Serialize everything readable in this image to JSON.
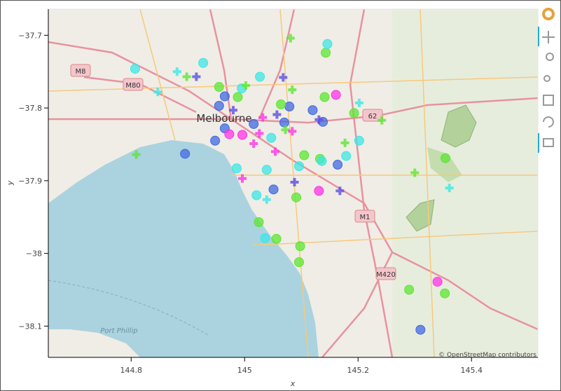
{
  "chart_data": {
    "type": "scatter",
    "x_label": "x",
    "y_label": "y",
    "xlim": [
      144.654,
      145.517
    ],
    "ylim": [
      -38.143,
      -37.664
    ],
    "xticks": [
      144.8,
      145,
      145.2,
      145.4
    ],
    "yticks": [
      {
        "value": -37.7,
        "label": "−37.7"
      },
      {
        "value": -37.8,
        "label": "−37.8"
      },
      {
        "value": -37.9,
        "label": "−37.9"
      },
      {
        "value": -38,
        "label": "−38"
      },
      {
        "value": -38.1,
        "label": "−38.1"
      }
    ],
    "attribution": "© OpenStreetMap contributors",
    "map_labels": [
      "Melbourne",
      "M8",
      "M80",
      "62",
      "M1",
      "M420",
      "Port Phillip"
    ],
    "series": [
      {
        "marker": "circle",
        "color": "#4169e1",
        "x": [
          144.965,
          144.955,
          144.965,
          144.948,
          144.895,
          145.016,
          145.079,
          145.07,
          145.12,
          145.138,
          145.164,
          145.051,
          145.31
        ],
        "y": [
          -37.784,
          -37.797,
          -37.828,
          -37.845,
          -37.863,
          -37.822,
          -37.798,
          -37.82,
          -37.803,
          -37.819,
          -37.878,
          -37.912,
          -38.105
        ]
      },
      {
        "marker": "circle",
        "color": "#5ee632",
        "x": [
          144.955,
          144.988,
          145.143,
          145.141,
          145.193,
          145.064,
          145.105,
          145.133,
          145.091,
          145.025,
          145.056,
          145.098,
          145.096,
          145.29,
          145.353,
          145.354
        ],
        "y": [
          -37.771,
          -37.785,
          -37.724,
          -37.785,
          -37.807,
          -37.795,
          -37.865,
          -37.87,
          -37.923,
          -37.957,
          -37.98,
          -37.99,
          -38.012,
          -38.05,
          -38.055,
          -37.869
        ]
      },
      {
        "marker": "circle",
        "color": "#ff33e6",
        "x": [
          144.973,
          144.996,
          145.161,
          145.131,
          145.34
        ],
        "y": [
          -37.836,
          -37.837,
          -37.782,
          -37.914,
          -38.039
        ]
      },
      {
        "marker": "circle",
        "color": "#3ee6e6",
        "x": [
          144.807,
          144.927,
          145.027,
          144.995,
          145.146,
          145.047,
          144.986,
          145.039,
          145.136,
          145.179,
          145.202,
          145.021,
          145.036,
          145.096
        ],
        "y": [
          -37.746,
          -37.738,
          -37.757,
          -37.773,
          -37.712,
          -37.841,
          -37.883,
          -37.885,
          -37.873,
          -37.866,
          -37.845,
          -37.92,
          -37.979,
          -37.88
        ]
      },
      {
        "marker": "cross",
        "color": "#5ee632",
        "x": [
          145.081,
          144.898,
          145.002,
          145.084,
          145.072,
          145.177,
          145.242,
          144.809,
          145.3
        ],
        "y": [
          -37.704,
          -37.757,
          -37.769,
          -37.775,
          -37.83,
          -37.848,
          -37.817,
          -37.864,
          -37.889
        ]
      },
      {
        "marker": "cross",
        "color": "#ff33e6",
        "x": [
          145.032,
          145.026,
          145.084,
          145.016,
          145.054,
          144.996
        ],
        "y": [
          -37.813,
          -37.835,
          -37.832,
          -37.849,
          -37.86,
          -37.897
        ]
      },
      {
        "marker": "cross",
        "color": "#3ee6e6",
        "x": [
          144.847,
          144.881,
          145.202,
          145.361,
          145.039
        ],
        "y": [
          -37.778,
          -37.75,
          -37.793,
          -37.91,
          -37.926
        ]
      },
      {
        "marker": "cross",
        "color": "#5a4fe0",
        "x": [
          144.915,
          145.068,
          144.98,
          145.057,
          145.131,
          145.088,
          145.168
        ],
        "y": [
          -37.757,
          -37.758,
          -37.803,
          -37.809,
          -37.816,
          -37.902,
          -37.914
        ]
      }
    ]
  }
}
